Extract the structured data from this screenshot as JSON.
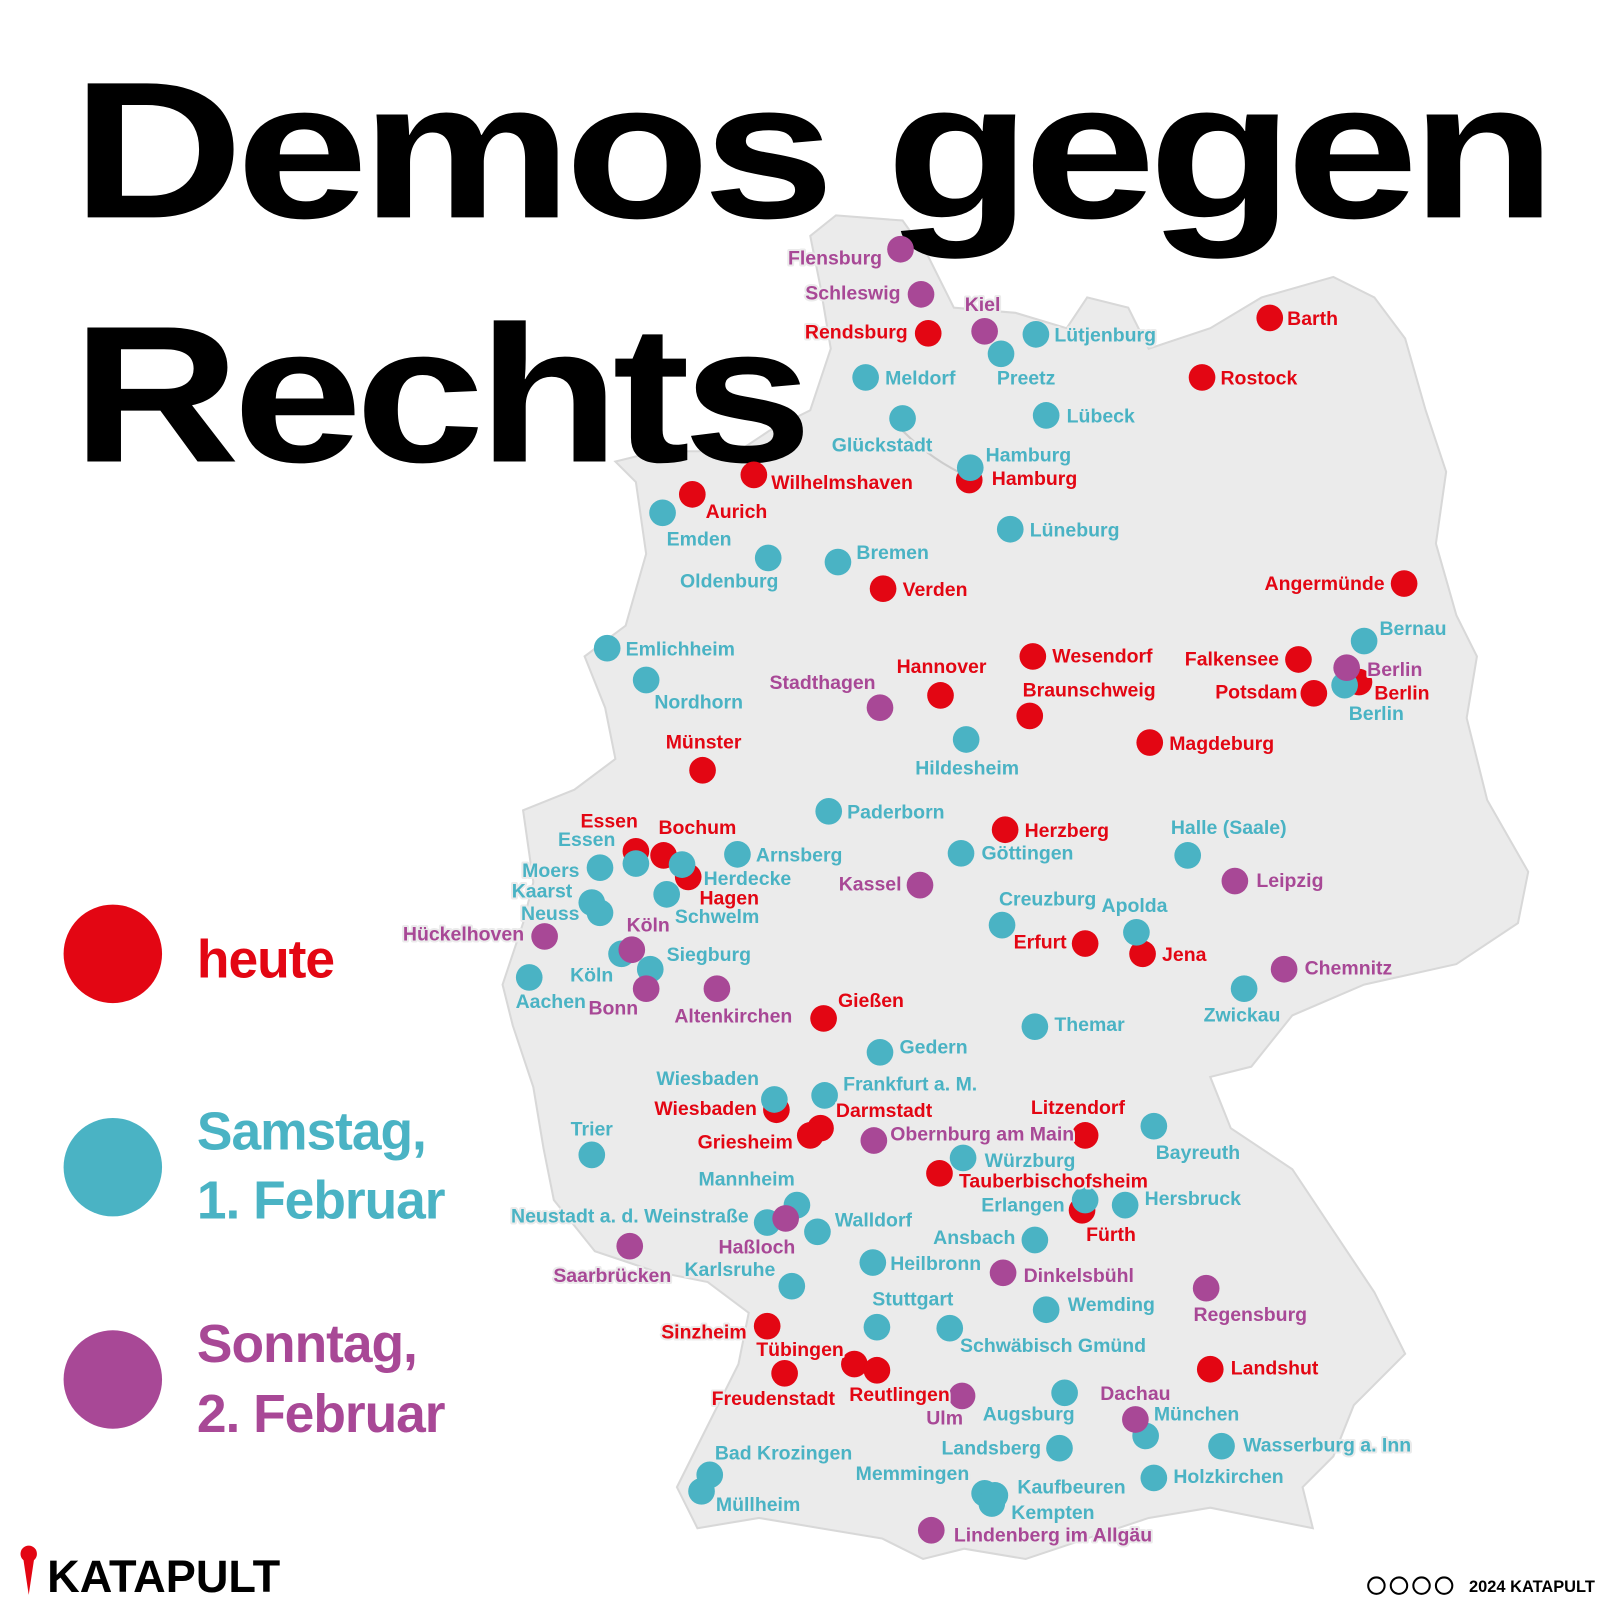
{
  "title": {
    "lines": [
      "Demos gegen",
      "Rechts"
    ]
  },
  "legend": [
    {
      "lines": [
        "heute"
      ],
      "color": "#e30613",
      "cities": [
        "Rendsburg",
        "Barth",
        "Rostock",
        "Wilhelmshaven",
        "Aurich",
        "Hamburg",
        "Verden",
        "Angermünde",
        "Wesendorf",
        "Falkensee",
        "Berlin",
        "Potsdam",
        "Hannover",
        "Braunschweig",
        "Magdeburg",
        "Münster",
        "Essen",
        "Bochum",
        "Herzberg",
        "Hagen",
        "Erfurt",
        "Jena",
        "Gießen",
        "Wiesbaden",
        "Darmstadt",
        "Griesheim",
        "Litzendorf",
        "Tauberbischofsheim",
        "Fürth",
        "Sinzheim",
        "Tübingen",
        "Reutlingen",
        "Freudenstadt",
        "Landshut"
      ]
    },
    {
      "lines": [
        "Samstag,",
        "1. Februar"
      ],
      "color": "#4ab3c4",
      "cities": [
        "Lütjenburg",
        "Meldorf",
        "Preetz",
        "Glückstadt",
        "Lübeck",
        "Hamburg",
        "Emden",
        "Lüneburg",
        "Bremen",
        "Oldenburg",
        "Bernau",
        "Berlin",
        "Emlichheim",
        "Nordhorn",
        "Hildesheim",
        "Paderborn",
        "Arnsberg",
        "Göttingen",
        "Halle (Saale)",
        "Essen",
        "Moers",
        "Kaarst",
        "Neuss",
        "Herdecke",
        "Schwelm",
        "Creuzburg",
        "Apolda",
        "Siegburg",
        "Köln",
        "Aachen",
        "Zwickau",
        "Themar",
        "Gedern",
        "Wiesbaden",
        "Frankfurt a. M.",
        "Trier",
        "Bayreuth",
        "Würzburg",
        "Mannheim",
        "Erlangen",
        "Hersbruck",
        "Neustadt a. d. Weinstraße",
        "Walldorf",
        "Ansbach",
        "Heilbronn",
        "Karlsruhe",
        "Wemding",
        "Stuttgart",
        "Schwäbisch Gmünd",
        "Augsburg",
        "München",
        "Landsberg",
        "Wasserburg a. Inn",
        "Bad Krozingen",
        "Müllheim",
        "Memmingen",
        "Kaufbeuren",
        "Holzkirchen",
        "Kempten"
      ]
    },
    {
      "lines": [
        "Sonntag,",
        "2. Februar"
      ],
      "color": "#a84896",
      "cities": [
        "Flensburg",
        "Schleswig",
        "Kiel",
        "Stadthagen",
        "Berlin",
        "Kassel",
        "Leipzig",
        "Hückelhoven",
        "Köln",
        "Chemnitz",
        "Bonn",
        "Altenkirchen",
        "Obernburg am Main",
        "Haßloch",
        "Saarbrücken",
        "Dinkelsbühl",
        "Regensburg",
        "Ulm",
        "Dachau",
        "Lindenberg im Allgäu"
      ]
    }
  ],
  "logo": "KATAPULT",
  "copyright": "2024 KATAPULT"
}
